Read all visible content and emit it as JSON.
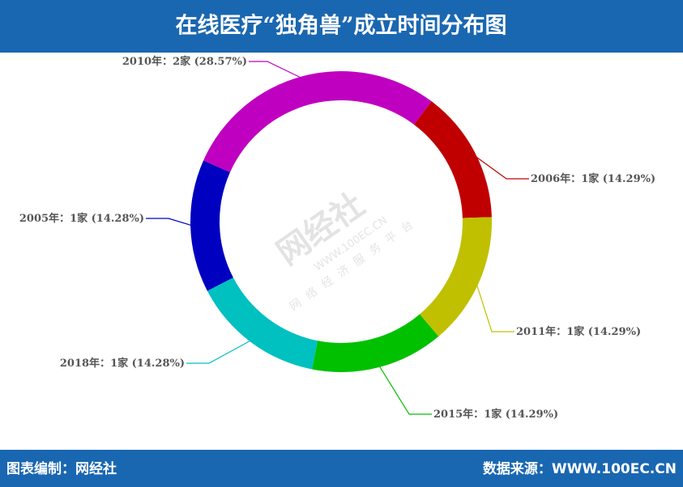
{
  "chart_data": {
    "type": "pie",
    "title": "在线医疗“独角兽”成立时间分布图",
    "categories": [
      "2010年：",
      "2006年：",
      "2011年：",
      "2015年：",
      "2018年：",
      "2005年："
    ],
    "values": [
      2,
      1,
      1,
      1,
      1,
      1
    ],
    "value_labels": [
      "2家 (28.57%)",
      "1家 (14.29%)",
      "1家 (14.29%)",
      "1家 (14.29%)",
      "1家 (14.28%)",
      "1家 (14.28%)"
    ],
    "colors": [
      "#c000c0",
      "#c00000",
      "#c0c000",
      "#00c000",
      "#00c0c0",
      "#0000c0"
    ]
  },
  "watermark": {
    "brand": "网经社",
    "url": "WWW.100EC.CN",
    "slogan": "网络经济服务平台"
  },
  "footer": {
    "left": "图表编制：网经社",
    "right": "数据来源：WWW.100EC.CN"
  }
}
